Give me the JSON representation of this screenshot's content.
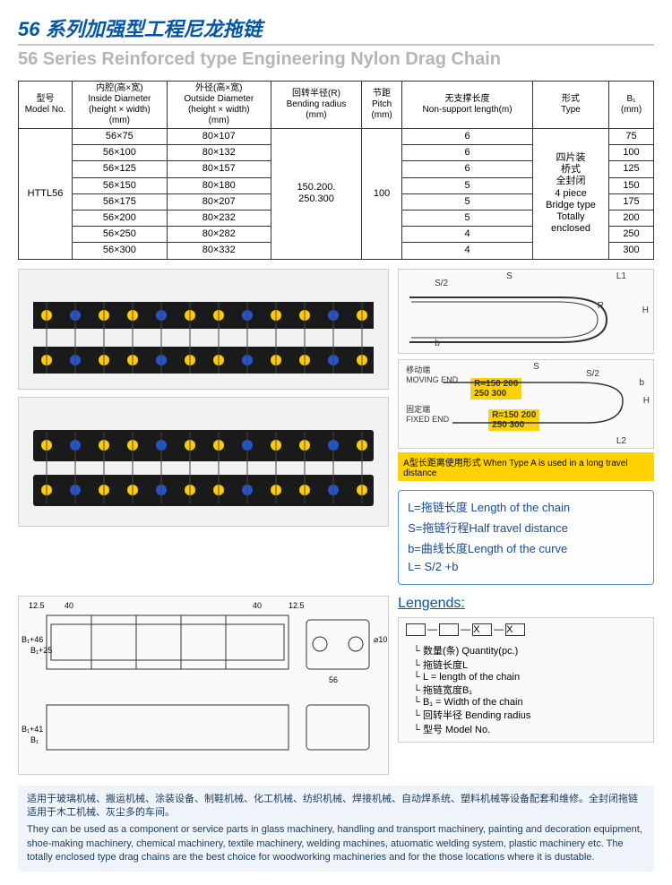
{
  "title": {
    "cn": "56 系列加强型工程尼龙拖链",
    "en": "56 Series Reinforced type Engineering Nylon Drag Chain"
  },
  "table": {
    "headers": {
      "model": "型号\nModel No.",
      "inside": "内腔(高×宽)\nInside Diameter\n(height × width)\n(mm)",
      "outside": "外径(高×宽)\nOutside Diameter\n(height × width)\n(mm)",
      "radius": "回转半径(R)\nBending radius\n(mm)",
      "pitch": "节距\nPitch\n(mm)",
      "support": "无支撑长度\nNon-support length(m)",
      "type": "形式\nType",
      "b1": "B₁\n(mm)"
    },
    "model": "HTTL56",
    "radius": "150.200.\n250.300",
    "pitch": "100",
    "type": "四片装\n桥式\n全封闭\n4 piece\nBridge type\nTotally enclosed",
    "rows": [
      {
        "inside": "56×75",
        "outside": "80×107",
        "support": "6",
        "b1": "75"
      },
      {
        "inside": "56×100",
        "outside": "80×132",
        "support": "6",
        "b1": "100"
      },
      {
        "inside": "56×125",
        "outside": "80×157",
        "support": "6",
        "b1": "125"
      },
      {
        "inside": "56×150",
        "outside": "80×180",
        "support": "5",
        "b1": "150"
      },
      {
        "inside": "56×175",
        "outside": "80×207",
        "support": "5",
        "b1": "175"
      },
      {
        "inside": "56×200",
        "outside": "80×232",
        "support": "5",
        "b1": "200"
      },
      {
        "inside": "56×250",
        "outside": "80×282",
        "support": "4",
        "b1": "250"
      },
      {
        "inside": "56×300",
        "outside": "80×332",
        "support": "4",
        "b1": "300"
      }
    ]
  },
  "schematic1": {
    "S": "S",
    "S2": "S/2",
    "L1": "L1",
    "R": "R",
    "H": "H",
    "b": "b"
  },
  "schematic2": {
    "moving_cn": "移动端",
    "moving_en": "MOVING END",
    "fixed_cn": "固定端",
    "fixed_en": "FIXED END",
    "rvals": "R=150 200\n250 300",
    "S": "S",
    "S2": "S/2",
    "b": "b",
    "H": "H",
    "L2": "L2"
  },
  "yellow_strip": "A型长距离使用形式  When Type A is used in a long travel distance",
  "formula": {
    "l1": "L=拖链长度 Length of the chain",
    "l2": "S=拖链行程Half travel distance",
    "l3": "b=曲线长度Length of the curve",
    "l4": "L= S/2 +b"
  },
  "dims": {
    "d1": "12.5",
    "d2": "40",
    "d3": "40",
    "d4": "12.5",
    "h1": "B₁+46",
    "h2": "B₁+25",
    "p": "56",
    "side": "⌀10",
    "bw": "B₁+41",
    "bh": "B₁"
  },
  "legend": {
    "title": "Lengends:",
    "items": [
      "数量(条) Quantity(pc.)",
      "拖链长度L",
      "L = length of the chain",
      "拖链宽度B₁",
      "B₁ = Width of the chain",
      "回转半径 Bending radius",
      "型号 Model No."
    ]
  },
  "footer": {
    "cn": "适用于玻璃机械、搬运机械、涂装设备、制鞋机械、化工机械、纺织机械、焊接机械、自动焊系统、塑料机械等设备配套和维修。全封闭拖链适用于木工机械、灰尘多的车间。",
    "en": "They can be used as a component or service parts in glass machinery, handling and transport machinery, painting and decoration equipment, shoe-making machinery, chemical machinery, textile machinery, welding machines, atuomatic welding system, plastic machinery etc. The totally enclosed type drag chains are the best choice for woodworking machineries and for the those locations where it is dustable."
  },
  "colors": {
    "brand": "#0456a8",
    "yellow": "#ffd200",
    "footer_bg": "#eef4fa"
  }
}
